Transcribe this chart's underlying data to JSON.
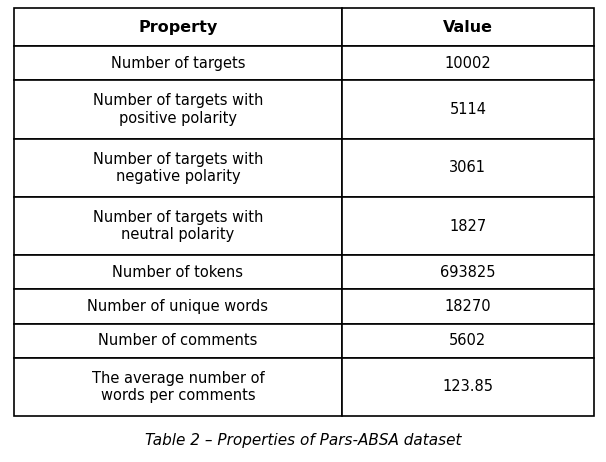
{
  "title": "Table 2 – Properties of Pars-ABSA dataset",
  "col_headers": [
    "Property",
    "Value"
  ],
  "rows": [
    [
      "Number of targets",
      "10002"
    ],
    [
      "Number of targets with\npositive polarity",
      "5114"
    ],
    [
      "Number of targets with\nnegative polarity",
      "3061"
    ],
    [
      "Number of targets with\nneutral polarity",
      "1827"
    ],
    [
      "Number of tokens",
      "693825"
    ],
    [
      "Number of unique words",
      "18270"
    ],
    [
      "Number of comments",
      "5602"
    ],
    [
      "The average number of\nwords per comments",
      "123.85"
    ]
  ],
  "header_fontsize": 11.5,
  "cell_fontsize": 10.5,
  "title_fontsize": 11,
  "col_split": 0.565,
  "background_color": "#ffffff",
  "line_color": "#000000",
  "fig_width": 6.06,
  "fig_height": 4.62,
  "dpi": 100
}
